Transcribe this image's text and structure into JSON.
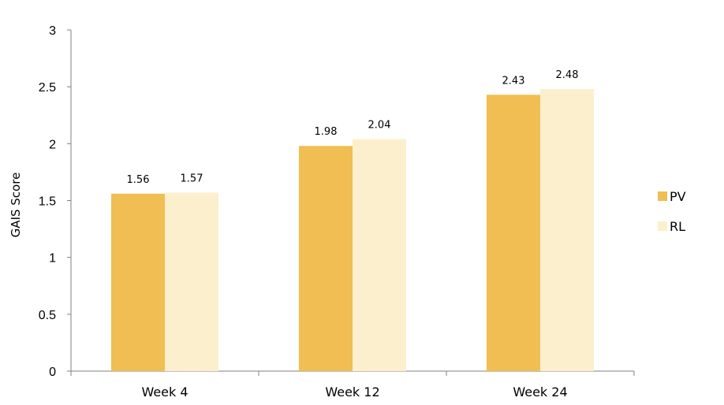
{
  "chart_data": {
    "type": "bar",
    "title": "",
    "xlabel": "",
    "ylabel": "GAIS Score",
    "ylim": [
      0,
      3
    ],
    "yticks": [
      "0",
      "0.5",
      "1",
      "1.5",
      "2",
      "2.5",
      "3"
    ],
    "categories": [
      "Week 4",
      "Week 12",
      "Week 24"
    ],
    "series": [
      {
        "name": "PV",
        "values": [
          1.56,
          1.98,
          2.43
        ],
        "labels": [
          "1.56",
          "1.98",
          "2.43"
        ],
        "color": "#F0BE52"
      },
      {
        "name": "RL",
        "values": [
          1.57,
          2.04,
          2.48
        ],
        "labels": [
          "1.57",
          "2.04",
          "2.48"
        ],
        "color": "#FBEFCD"
      }
    ],
    "legend": {
      "placement": "right"
    },
    "grid": false,
    "axis_color": "#808080"
  }
}
